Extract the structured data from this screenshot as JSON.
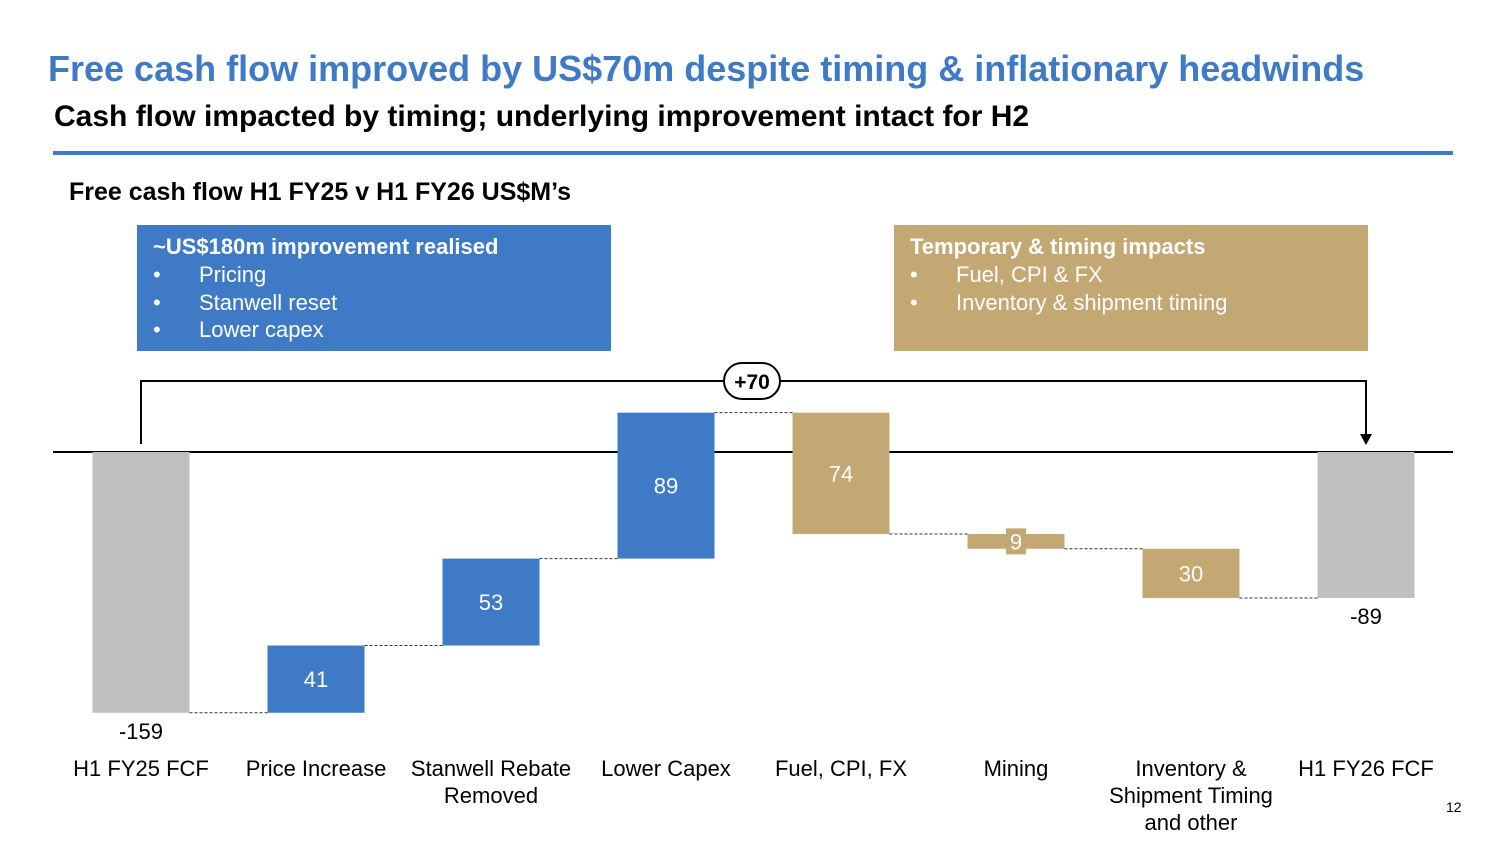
{
  "header": {
    "title": "Free cash flow improved by US$70m despite timing & inflationary headwinds",
    "subtitle": "Cash flow impacted by timing; underlying improvement intact for H2"
  },
  "callouts": {
    "improvement": {
      "heading": "~US$180m improvement realised",
      "items": [
        "Pricing",
        "Stanwell reset",
        "Lower capex"
      ]
    },
    "timing": {
      "heading": "Temporary & timing impacts",
      "items": [
        "Fuel, CPI & FX",
        "Inventory & shipment timing"
      ]
    }
  },
  "page_number": "12",
  "colors": {
    "title_blue": "#3e7ac6",
    "increase": "#3e7ac6",
    "decrease": "#c4a874",
    "total": "#bfbfbf",
    "callout_gold": "#c4a874"
  },
  "chart_data": {
    "type": "bar",
    "subtype": "waterfall",
    "title": "Free cash flow H1 FY25 v H1 FY26 US$M’s",
    "categories": [
      "H1 FY25 FCF",
      "Price Increase",
      "Stanwell Rebate Removed",
      "Lower Capex",
      "Fuel, CPI, FX",
      "Mining",
      "Inventory & Shipment Timing and other",
      "H1 FY26 FCF"
    ],
    "category_lines": [
      [
        "H1 FY25 FCF"
      ],
      [
        "Price Increase"
      ],
      [
        "Stanwell Rebate",
        "Removed"
      ],
      [
        "Lower Capex"
      ],
      [
        "Fuel, CPI, FX"
      ],
      [
        "Mining"
      ],
      [
        "Inventory &",
        "Shipment Timing",
        "and other"
      ],
      [
        "H1 FY26 FCF"
      ]
    ],
    "steps": [
      {
        "kind": "total",
        "value": -159,
        "label": "-159"
      },
      {
        "kind": "increase",
        "value": 41,
        "label": "41"
      },
      {
        "kind": "increase",
        "value": 53,
        "label": "53"
      },
      {
        "kind": "increase",
        "value": 89,
        "label": "89"
      },
      {
        "kind": "decrease",
        "value": -74,
        "label": "74"
      },
      {
        "kind": "decrease",
        "value": -9,
        "label": "9"
      },
      {
        "kind": "decrease",
        "value": -30,
        "label": "30"
      },
      {
        "kind": "total",
        "value": -89,
        "label": "-89"
      }
    ],
    "bracket_label": "+70",
    "ylim": [
      -170,
      45
    ],
    "grid": false,
    "legend": "none"
  }
}
